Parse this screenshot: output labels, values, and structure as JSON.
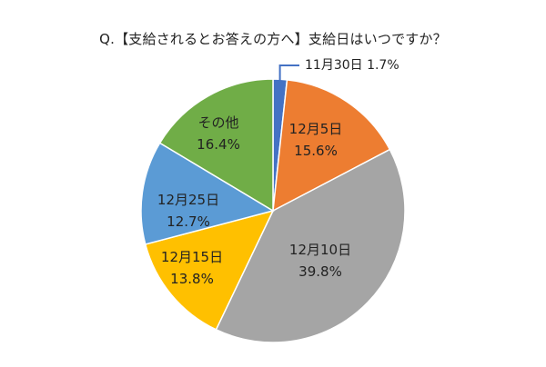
{
  "chart_data": {
    "type": "pie",
    "title": "Q.【支給されるとお答えの方へ】支給日はいつですか？",
    "slices": [
      {
        "label": "11月30日",
        "value": 1.7,
        "value_label": "1.7%",
        "color": "#4472C4"
      },
      {
        "label": "12月5日",
        "value": 15.6,
        "value_label": "15.6%",
        "color": "#ED7D31"
      },
      {
        "label": "12月10日",
        "value": 39.8,
        "value_label": "39.8%",
        "color": "#A5A5A5"
      },
      {
        "label": "12月15日",
        "value": 13.8,
        "value_label": "13.8%",
        "color": "#FFC000"
      },
      {
        "label": "12月25日",
        "value": 12.7,
        "value_label": "12.7%",
        "color": "#5B9BD5"
      },
      {
        "label": "その他",
        "value": 16.4,
        "value_label": "16.4%",
        "color": "#70AD47"
      }
    ],
    "start_angle": "12 o'clock",
    "direction": "clockwise",
    "label_color": "#222222"
  }
}
